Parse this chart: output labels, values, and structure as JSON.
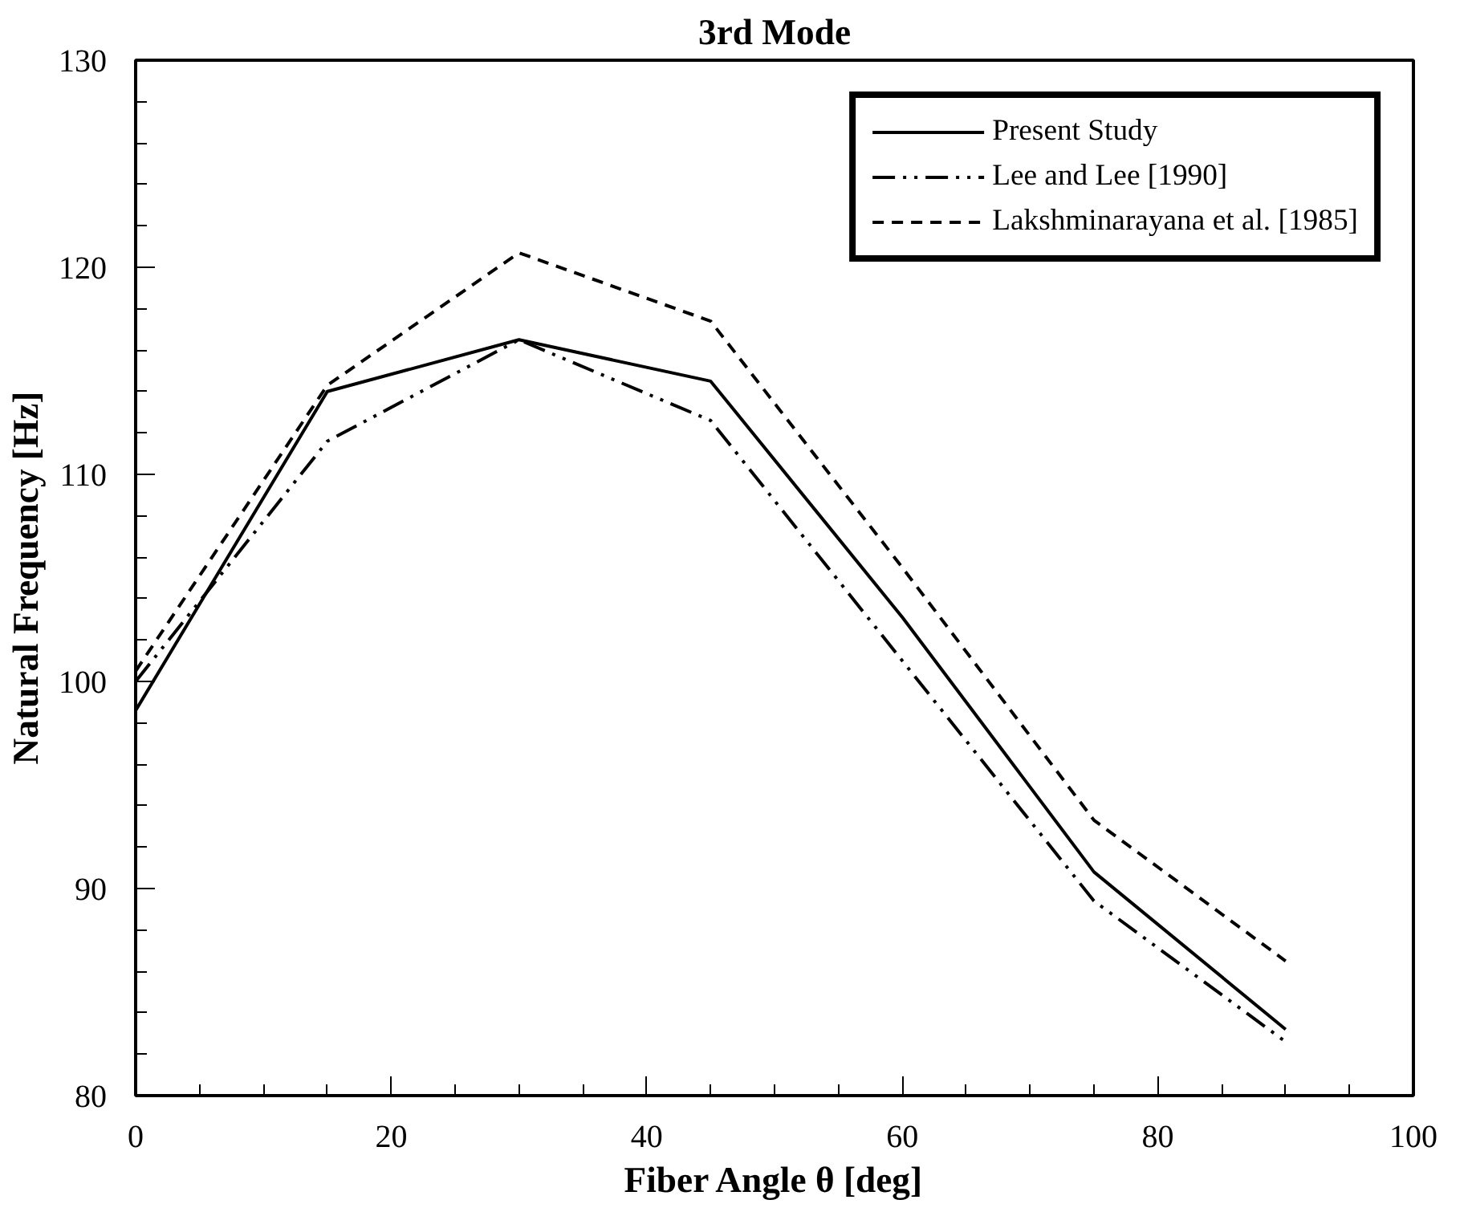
{
  "chart_data": {
    "type": "line",
    "title": "3rd Mode",
    "xlabel": "Fiber Angle θ [deg]",
    "ylabel": "Natural Frequency [Hz]",
    "x": [
      0,
      15,
      30,
      45,
      60,
      75,
      90
    ],
    "series": [
      {
        "name": "Present Study",
        "color": "#000000",
        "line_style": "solid",
        "values": [
          98.6,
          114.0,
          116.5,
          114.5,
          103.1,
          90.8,
          83.2
        ]
      },
      {
        "name": "Lee and Lee [1990]",
        "color": "#000000",
        "line_style": "dashdotdot",
        "values": [
          100.0,
          111.6,
          116.5,
          112.6,
          101.0,
          89.4,
          82.6
        ]
      },
      {
        "name": "Lakshminarayana et al. [1985]",
        "color": "#000000",
        "line_style": "dashed",
        "values": [
          100.5,
          114.3,
          120.7,
          117.4,
          105.5,
          93.3,
          86.5
        ]
      }
    ],
    "xlim": [
      0,
      100
    ],
    "xticks": [
      0,
      20,
      40,
      60,
      80,
      100
    ],
    "ylim": [
      80,
      130
    ],
    "yticks": [
      80,
      90,
      100,
      110,
      120,
      130
    ],
    "grid": false,
    "legend": "top right",
    "marker": "none"
  }
}
